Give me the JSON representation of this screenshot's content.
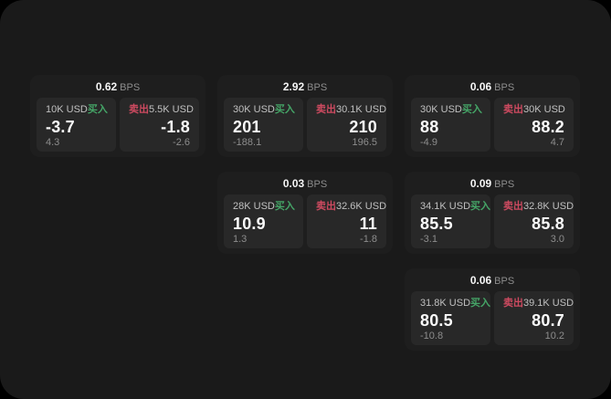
{
  "colors": {
    "outside_bg": "#000000",
    "panel_bg": "#1a1a1a",
    "card_bg": "#1e1e1e",
    "tile_bg": "#282828",
    "buy_green": "#45a567",
    "sell_red": "#cd4a60",
    "value_white": "#fafafa",
    "muted_gray": "#8d8d8d"
  },
  "labels": {
    "bps": "BPS",
    "buy": "买入",
    "sell": "卖出"
  },
  "cards": [
    {
      "col": 1,
      "row": 1,
      "bps": "0.62",
      "buy": {
        "size": "10K USD",
        "value": "-3.7",
        "delta": "4.3"
      },
      "sell": {
        "size": "5.5K USD",
        "value": "-1.8",
        "delta": "-2.6"
      }
    },
    {
      "col": 2,
      "row": 1,
      "bps": "2.92",
      "buy": {
        "size": "30K USD",
        "value": "201",
        "delta": "-188.1"
      },
      "sell": {
        "size": "30.1K USD",
        "value": "210",
        "delta": "196.5"
      }
    },
    {
      "col": 3,
      "row": 1,
      "bps": "0.06",
      "buy": {
        "size": "30K USD",
        "value": "88",
        "delta": "-4.9"
      },
      "sell": {
        "size": "30K USD",
        "value": "88.2",
        "delta": "4.7"
      }
    },
    {
      "col": 2,
      "row": 2,
      "bps": "0.03",
      "buy": {
        "size": "28K USD",
        "value": "10.9",
        "delta": "1.3"
      },
      "sell": {
        "size": "32.6K USD",
        "value": "11",
        "delta": "-1.8"
      }
    },
    {
      "col": 3,
      "row": 2,
      "bps": "0.09",
      "buy": {
        "size": "34.1K USD",
        "value": "85.5",
        "delta": "-3.1"
      },
      "sell": {
        "size": "32.8K USD",
        "value": "85.8",
        "delta": "3.0"
      }
    },
    {
      "col": 3,
      "row": 3,
      "bps": "0.06",
      "buy": {
        "size": "31.8K USD",
        "value": "80.5",
        "delta": "-10.8"
      },
      "sell": {
        "size": "39.1K USD",
        "value": "80.7",
        "delta": "10.2"
      }
    }
  ]
}
